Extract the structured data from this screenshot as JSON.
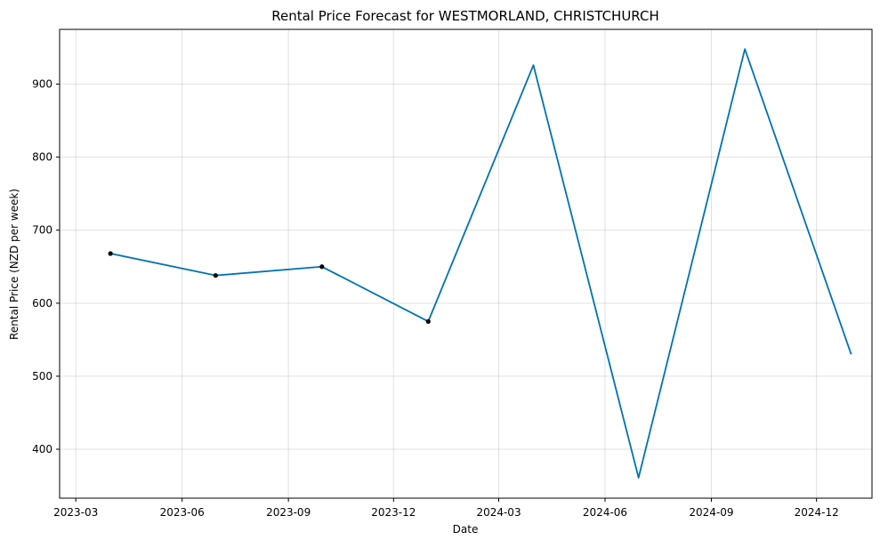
{
  "chart_data": {
    "type": "line",
    "title": "Rental Price Forecast for WESTMORLAND, CHRISTCHURCH",
    "xlabel": "Date",
    "ylabel": "Rental Price (NZD per week)",
    "x_axis_type": "date",
    "xlim": [
      "2023-02-15",
      "2025-01-18"
    ],
    "ylim": [
      333,
      975
    ],
    "grid": true,
    "x_ticks": [
      {
        "value": "2023-03-01",
        "label": "2023-03"
      },
      {
        "value": "2023-06-01",
        "label": "2023-06"
      },
      {
        "value": "2023-09-01",
        "label": "2023-09"
      },
      {
        "value": "2023-12-01",
        "label": "2023-12"
      },
      {
        "value": "2024-03-01",
        "label": "2024-03"
      },
      {
        "value": "2024-06-01",
        "label": "2024-06"
      },
      {
        "value": "2024-09-01",
        "label": "2024-09"
      },
      {
        "value": "2024-12-01",
        "label": "2024-12"
      }
    ],
    "y_ticks": [
      400,
      500,
      600,
      700,
      800,
      900
    ],
    "series": [
      {
        "color": "#0072b2",
        "x": [
          "2023-03-31",
          "2023-06-30",
          "2023-09-30",
          "2023-12-31",
          "2024-03-31",
          "2024-06-30",
          "2024-09-30",
          "2024-12-31"
        ],
        "y": [
          668,
          638,
          650,
          575,
          926,
          361,
          948,
          530
        ]
      }
    ],
    "observed_points": {
      "color": "#000000",
      "x": [
        "2023-03-31",
        "2023-06-30",
        "2023-09-30",
        "2023-12-31"
      ],
      "y": [
        668,
        638,
        650,
        575
      ]
    }
  }
}
